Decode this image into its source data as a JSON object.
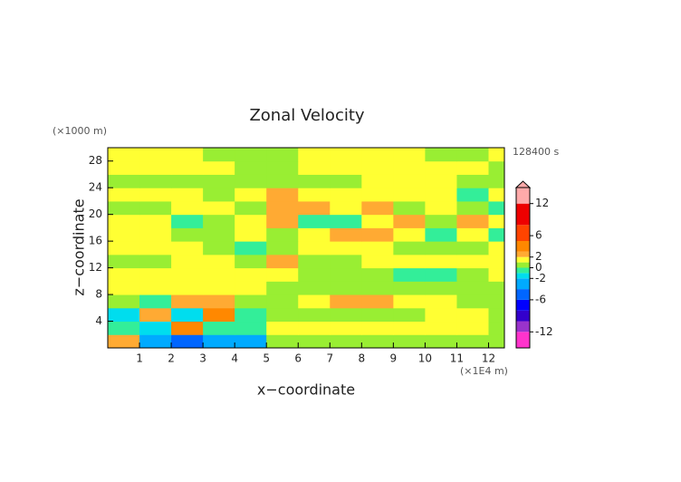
{
  "chart_data": {
    "type": "heatmap",
    "title": "Zonal Velocity",
    "x_label": "x−coordinate",
    "y_label": "z−coordinate",
    "x_unit": "(×1E4 m)",
    "y_unit": "(×1000 m)",
    "time_label": "128400 s",
    "xlim": [
      0,
      12.5
    ],
    "ylim": [
      0,
      30
    ],
    "xticks": [
      1,
      2,
      3,
      4,
      5,
      6,
      7,
      8,
      9,
      10,
      11,
      12
    ],
    "yticks": [
      4,
      8,
      12,
      16,
      20,
      24,
      28
    ],
    "xbins": [
      0,
      1,
      2,
      3,
      4,
      5,
      6,
      7,
      8,
      9,
      10,
      11,
      12,
      12.5
    ],
    "ybins": [
      0,
      2,
      4,
      6,
      8,
      10,
      12,
      14,
      16,
      18,
      20,
      22,
      24,
      26,
      28,
      30
    ],
    "z": [
      [
        2,
        -4,
        -6,
        -4,
        -3,
        0.5,
        0.5,
        0.5,
        0.5,
        0.5,
        0.5,
        0.5,
        0.5
      ],
      [
        -1,
        -2,
        3,
        -1,
        -1,
        1.5,
        1.5,
        1.5,
        1.5,
        1.5,
        1.5,
        1.5,
        0.5
      ],
      [
        -2,
        2,
        -2,
        3,
        -1,
        0.5,
        0.5,
        0.5,
        0.5,
        0.5,
        1.5,
        1.5,
        0.5
      ],
      [
        0.5,
        -1,
        2,
        2,
        0.5,
        0.5,
        1.5,
        2.5,
        2.5,
        1.5,
        1.5,
        0.5,
        0.5
      ],
      [
        1.5,
        1.5,
        1.5,
        1.5,
        1.5,
        0.5,
        0.5,
        0.5,
        0.5,
        0.5,
        0.5,
        0.5,
        0.5
      ],
      [
        1.5,
        1.5,
        1.5,
        1.5,
        1.5,
        1.5,
        0.5,
        0.5,
        0.5,
        -0.5,
        -0.5,
        0.5,
        1.5
      ],
      [
        0.5,
        0.5,
        1.5,
        1.5,
        0.5,
        2.5,
        0.5,
        0.5,
        1.5,
        1.5,
        1.5,
        1.5,
        1.5
      ],
      [
        1.5,
        1.5,
        1.5,
        0.5,
        -0.5,
        0.5,
        1.5,
        1.5,
        1.5,
        0.5,
        0.5,
        0.5,
        1.5
      ],
      [
        1.5,
        1.5,
        0.5,
        0.5,
        1.5,
        0.5,
        1.5,
        2.5,
        2.5,
        1.5,
        -0.5,
        1.5,
        -0.5
      ],
      [
        1.5,
        1.5,
        -0.5,
        0.5,
        1.5,
        2.5,
        -0.5,
        -0.5,
        1.5,
        2.5,
        0.5,
        2.5,
        1.5
      ],
      [
        0.5,
        0.5,
        1.5,
        1.5,
        0.5,
        2.5,
        2.5,
        1.5,
        2.5,
        0.5,
        1.5,
        0.5,
        -0.5
      ],
      [
        1.5,
        1.5,
        1.5,
        0.5,
        1.5,
        2.5,
        1.5,
        1.5,
        1.5,
        1.5,
        1.5,
        -0.5,
        1.5
      ],
      [
        0.5,
        0.5,
        0.5,
        0.5,
        0.5,
        0.5,
        0.5,
        0.5,
        1.5,
        1.5,
        1.5,
        0.5,
        0.5
      ],
      [
        1.5,
        1.5,
        1.5,
        1.5,
        0.5,
        0.5,
        1.5,
        1.5,
        1.5,
        1.5,
        1.5,
        1.5,
        0.5
      ],
      [
        1.5,
        1.5,
        1.5,
        0.5,
        0.5,
        0.5,
        1.5,
        1.5,
        1.5,
        1.5,
        0.5,
        0.5,
        1.5
      ]
    ],
    "clim": [
      -15,
      15
    ],
    "cticks": [
      12,
      6,
      2,
      0,
      -2,
      -6,
      -12
    ],
    "levels": [
      -15,
      -12,
      -10,
      -8,
      -6,
      -4,
      -2,
      -1,
      0,
      1,
      2,
      3,
      5,
      8,
      12,
      15
    ],
    "colors": [
      "#ff33cc",
      "#9933cc",
      "#3300cc",
      "#0000ff",
      "#0066ff",
      "#00aaff",
      "#00ddee",
      "#33ee99",
      "#99ee33",
      "#ffff33",
      "#ffaa33",
      "#ff8800",
      "#ff4400",
      "#ee0000",
      "#ffaaaa"
    ]
  }
}
